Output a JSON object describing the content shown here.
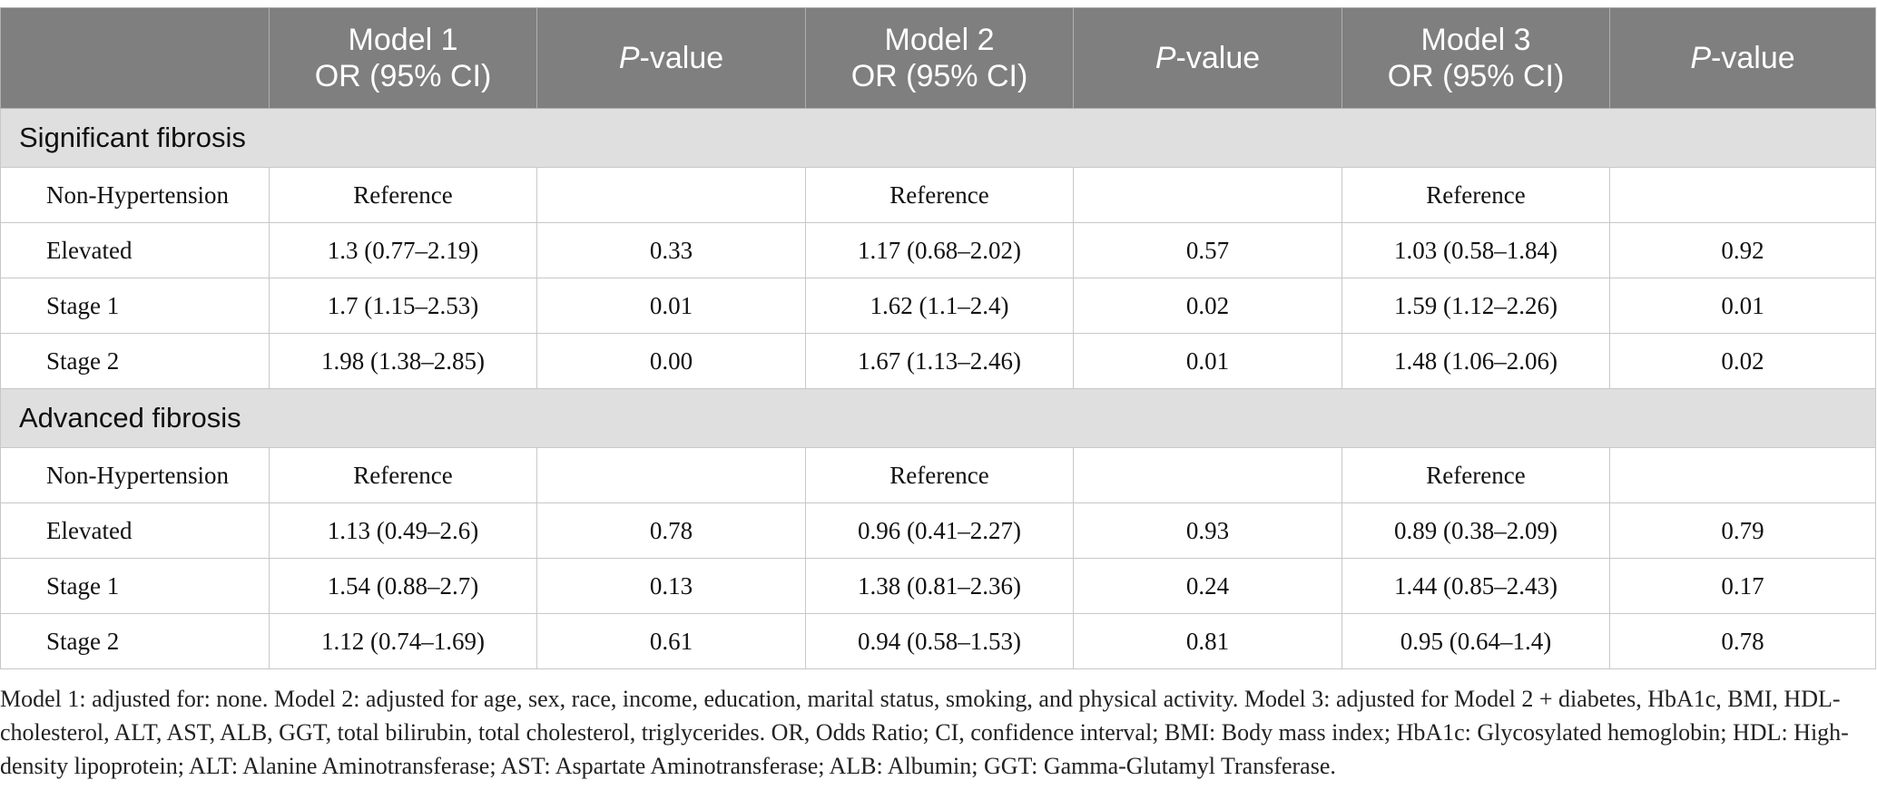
{
  "header": {
    "corner": "",
    "model1": [
      "Model 1",
      "OR (95% CI)"
    ],
    "model2": [
      "Model 2",
      "OR (95% CI)"
    ],
    "model3": [
      "Model 3",
      "OR (95% CI)"
    ],
    "p_italic": "P",
    "p_rest": "-value"
  },
  "sections": [
    {
      "title": "Significant fibrosis",
      "rows": [
        {
          "label": "Non-Hypertension",
          "m1": "Reference",
          "p1": "",
          "m2": "Reference",
          "p2": "",
          "m3": "Reference",
          "p3": ""
        },
        {
          "label": "Elevated",
          "m1": "1.3 (0.77–2.19)",
          "p1": "0.33",
          "m2": "1.17 (0.68–2.02)",
          "p2": "0.57",
          "m3": "1.03 (0.58–1.84)",
          "p3": "0.92"
        },
        {
          "label": "Stage 1",
          "m1": "1.7 (1.15–2.53)",
          "p1": "0.01",
          "m2": "1.62 (1.1–2.4)",
          "p2": "0.02",
          "m3": "1.59 (1.12–2.26)",
          "p3": "0.01"
        },
        {
          "label": "Stage 2",
          "m1": "1.98 (1.38–2.85)",
          "p1": "0.00",
          "m2": "1.67 (1.13–2.46)",
          "p2": "0.01",
          "m3": "1.48 (1.06–2.06)",
          "p3": "0.02"
        }
      ]
    },
    {
      "title": "Advanced fibrosis",
      "rows": [
        {
          "label": "Non-Hypertension",
          "m1": "Reference",
          "p1": "",
          "m2": "Reference",
          "p2": "",
          "m3": "Reference",
          "p3": ""
        },
        {
          "label": "Elevated",
          "m1": "1.13 (0.49–2.6)",
          "p1": "0.78",
          "m2": "0.96 (0.41–2.27)",
          "p2": "0.93",
          "m3": "0.89 (0.38–2.09)",
          "p3": "0.79"
        },
        {
          "label": "Stage 1",
          "m1": "1.54 (0.88–2.7)",
          "p1": "0.13",
          "m2": "1.38 (0.81–2.36)",
          "p2": "0.24",
          "m3": "1.44 (0.85–2.43)",
          "p3": "0.17"
        },
        {
          "label": "Stage 2",
          "m1": "1.12 (0.74–1.69)",
          "p1": "0.61",
          "m2": "0.94 (0.58–1.53)",
          "p2": "0.81",
          "m3": "0.95 (0.64–1.4)",
          "p3": "0.78"
        }
      ]
    }
  ],
  "footnote": "Model 1: adjusted for: none. Model 2: adjusted for age, sex, race, income, education, marital status, smoking, and physical activity. Model 3: adjusted for Model 2 + diabetes, HbA1c, BMI, HDL-cholesterol, ALT, AST, ALB, GGT, total bilirubin, total cholesterol, triglycerides. OR, Odds Ratio; CI, confidence interval; BMI: Body mass index; HbA1c: Glycosylated hemoglobin; HDL: High-density lipoprotein; ALT: Alanine Aminotransferase; AST: Aspartate Aminotransferase; ALB: Albumin; GGT: Gamma-Glutamyl Transferase.",
  "colors": {
    "header_bg": "#7f7f7f",
    "section_bg": "#e0dfe0",
    "border": "#c8c8c8"
  }
}
